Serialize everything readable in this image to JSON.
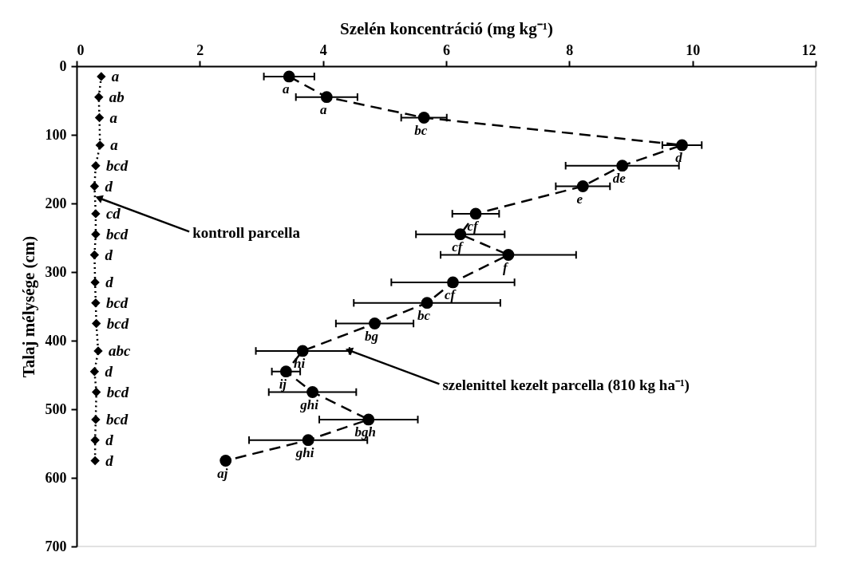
{
  "chart_data": {
    "type": "line",
    "xlabel": "Szelén koncentráció (mg kg⁻¹)",
    "ylabel": "Talaj mélysége (cm)",
    "xlim": [
      0,
      12
    ],
    "xticks": [
      0,
      2,
      4,
      6,
      8,
      10,
      12
    ],
    "ylim": [
      700,
      0
    ],
    "yticks": [
      0,
      100,
      200,
      300,
      400,
      500,
      600,
      700
    ],
    "grid": false,
    "series": [
      {
        "color": "#000000",
        "marker": "diamond",
        "line_style": "dotted",
        "x": [
          0.4,
          0.36,
          0.37,
          0.38,
          0.31,
          0.29,
          0.31,
          0.31,
          0.29,
          0.3,
          0.31,
          0.32,
          0.35,
          0.29,
          0.32,
          0.31,
          0.3,
          0.3
        ],
        "values": [
          15,
          45,
          75,
          115,
          145,
          175,
          215,
          245,
          275,
          315,
          345,
          375,
          415,
          445,
          475,
          515,
          545,
          575
        ],
        "value_labels": [
          "a",
          "ab",
          "a",
          "a",
          "bcd",
          "d",
          "cd",
          "bcd",
          "d",
          "d",
          "bcd",
          "bcd",
          "abc",
          "d",
          "bcd",
          "bcd",
          "d",
          "d"
        ]
      },
      {
        "color": "#000000",
        "marker": "circle",
        "line_style": "dashed",
        "x": [
          3.45,
          4.06,
          5.64,
          9.83,
          8.86,
          8.22,
          6.48,
          6.23,
          7.01,
          6.11,
          5.69,
          4.84,
          3.67,
          3.4,
          3.83,
          4.74,
          3.76,
          2.42
        ],
        "values": [
          15,
          45,
          75,
          115,
          145,
          175,
          215,
          245,
          275,
          315,
          345,
          375,
          415,
          445,
          475,
          515,
          545,
          575
        ],
        "xerrors": [
          0.41,
          0.5,
          0.37,
          0.32,
          0.92,
          0.44,
          0.38,
          0.72,
          1.1,
          1.0,
          1.19,
          0.63,
          0.76,
          0.23,
          0.71,
          0.8,
          0.96,
          null
        ],
        "value_labels": [
          "a",
          "a",
          "bc",
          "d",
          "de",
          "e",
          "cf",
          "cf",
          "f",
          "cf",
          "bc",
          "bg",
          "hi",
          "ij",
          "ghi",
          "bgh",
          "ghi",
          "aj"
        ]
      }
    ],
    "annotations": [
      {
        "text": "kontroll parcella",
        "x": 0.3,
        "y": 190
      },
      {
        "text": "szelenittel kezelt parcella (810 kg ha⁻¹)",
        "x": 4.36,
        "y": 412
      }
    ]
  }
}
